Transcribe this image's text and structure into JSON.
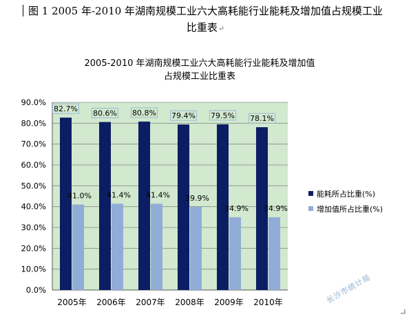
{
  "document": {
    "caption_line1": "图 1  2005 年-2010 年湖南规模工业六大高耗能行业能耗及增加值占规模工业",
    "caption_line2": "比重表",
    "paragraph_mark": "↵",
    "watermark": "长沙市统计局"
  },
  "colors": {
    "plot_background": "#d2e8cf",
    "energy_bar": "#0b1e63",
    "added_value_bar": "#91acd6",
    "label_box_border": "#9bbad8",
    "corner_mark": "#666666"
  },
  "chart_data": {
    "type": "bar",
    "title_lines": [
      "2005-2010 年湖南规模工业六大高耗能行业能耗及增加值",
      "占规模工业比重表"
    ],
    "categories": [
      "2005年",
      "2006年",
      "2007年",
      "2008年",
      "2009年",
      "2010年"
    ],
    "series": [
      {
        "name": "能耗所占比重(%)",
        "values": [
          82.7,
          80.6,
          80.8,
          79.4,
          79.5,
          78.1
        ],
        "labels": [
          "82.7%",
          "80.6%",
          "80.8%",
          "79.4%",
          "79.5%",
          "78.1%"
        ]
      },
      {
        "name": "增加值所占比重(%)",
        "values": [
          41.0,
          41.4,
          41.4,
          39.9,
          34.9,
          34.9
        ],
        "labels": [
          "41.0%",
          "41.4%",
          "41.4%",
          "39.9%",
          "34.9%",
          "34.9%"
        ]
      }
    ],
    "y_ticks": [
      "0.0%",
      "10.0%",
      "20.0%",
      "30.0%",
      "40.0%",
      "50.0%",
      "60.0%",
      "70.0%",
      "80.0%",
      "90.0%"
    ],
    "ylim": [
      0,
      90
    ],
    "grid": true,
    "legend_position": "right"
  }
}
